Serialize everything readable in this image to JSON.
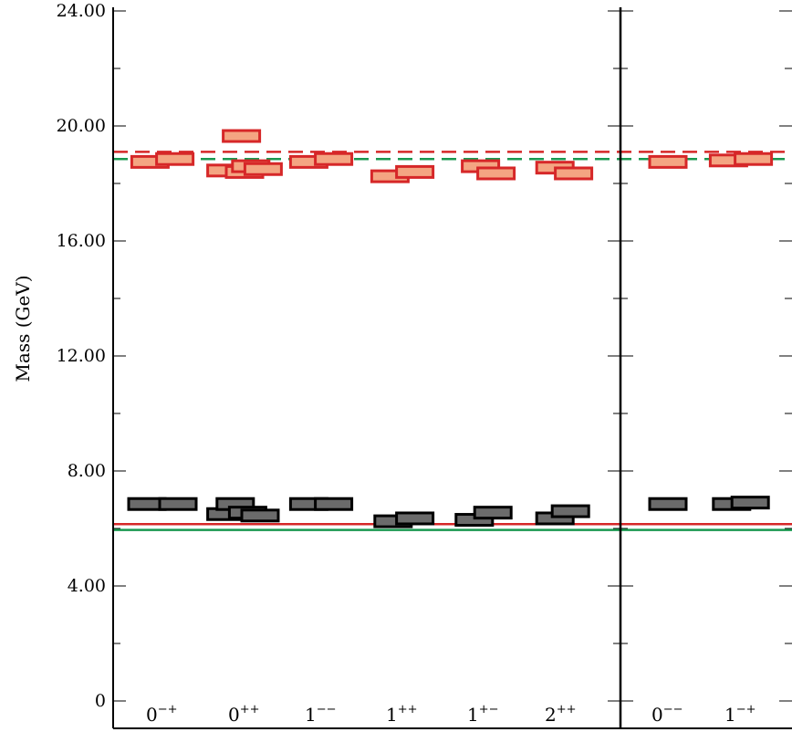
{
  "chart_data": {
    "type": "scatter",
    "ylabel": "Mass (GeV)",
    "ylim": [
      0,
      24
    ],
    "y_tick_values": [
      0,
      4,
      8,
      12,
      16,
      20,
      24
    ],
    "y_tick_labels": [
      "0",
      "4.00",
      "8.00",
      "12.00",
      "16.00",
      "20.00",
      "24.00"
    ],
    "panels": [
      {
        "categories": [
          {
            "base": "0",
            "sup": "−+"
          },
          {
            "base": "0",
            "sup": "++"
          },
          {
            "base": "1",
            "sup": "−−"
          },
          {
            "base": "1",
            "sup": "++"
          },
          {
            "base": "1",
            "sup": "+−"
          },
          {
            "base": "2",
            "sup": "++"
          }
        ]
      },
      {
        "categories": [
          {
            "base": "0",
            "sup": "−−"
          },
          {
            "base": "1",
            "sup": "−+"
          }
        ]
      }
    ],
    "reference_lines": [
      {
        "value": 6.15,
        "style": "solid",
        "color": "#d62728"
      },
      {
        "value": 5.95,
        "style": "solid",
        "color": "#1a9850"
      },
      {
        "value": 19.1,
        "style": "dashed",
        "color": "#d62728"
      },
      {
        "value": 18.85,
        "style": "dashed",
        "color": "#1a9850"
      }
    ],
    "series": [
      {
        "type": "lower",
        "fill": "#6b6b6b",
        "stroke": "#000000",
        "states": [
          {
            "panel": 0,
            "cat": 0,
            "offset": -0.5,
            "value": 6.85
          },
          {
            "panel": 0,
            "cat": 0,
            "offset": 0.5,
            "value": 6.85
          },
          {
            "panel": 0,
            "cat": 1,
            "offset": -0.6,
            "value": 6.5
          },
          {
            "panel": 0,
            "cat": 1,
            "offset": -0.3,
            "value": 6.85
          },
          {
            "panel": 0,
            "cat": 1,
            "offset": 0.1,
            "value": 6.55
          },
          {
            "panel": 0,
            "cat": 1,
            "offset": 0.5,
            "value": 6.45
          },
          {
            "panel": 0,
            "cat": 2,
            "offset": -0.4,
            "value": 6.85
          },
          {
            "panel": 0,
            "cat": 2,
            "offset": 0.4,
            "value": 6.85
          },
          {
            "panel": 0,
            "cat": 3,
            "offset": -0.3,
            "value": 6.25
          },
          {
            "panel": 0,
            "cat": 3,
            "offset": 0.4,
            "value": 6.35
          },
          {
            "panel": 0,
            "cat": 4,
            "offset": -0.3,
            "value": 6.3
          },
          {
            "panel": 0,
            "cat": 4,
            "offset": 0.3,
            "value": 6.55
          },
          {
            "panel": 0,
            "cat": 5,
            "offset": -0.2,
            "value": 6.35
          },
          {
            "panel": 0,
            "cat": 5,
            "offset": 0.3,
            "value": 6.6
          },
          {
            "panel": 1,
            "cat": 0,
            "offset": 0,
            "value": 6.85
          },
          {
            "panel": 1,
            "cat": 1,
            "offset": -0.3,
            "value": 6.85
          },
          {
            "panel": 1,
            "cat": 1,
            "offset": 0.3,
            "value": 6.9
          }
        ]
      },
      {
        "type": "upper",
        "fill": "#f4a582",
        "stroke": "#d62728",
        "states": [
          {
            "panel": 0,
            "cat": 0,
            "offset": -0.4,
            "value": 18.75
          },
          {
            "panel": 0,
            "cat": 0,
            "offset": 0.4,
            "value": 18.85
          },
          {
            "panel": 0,
            "cat": 1,
            "offset": -0.6,
            "value": 18.45
          },
          {
            "panel": 0,
            "cat": 1,
            "offset": -0.1,
            "value": 19.65
          },
          {
            "panel": 0,
            "cat": 1,
            "offset": 0.0,
            "value": 18.4
          },
          {
            "panel": 0,
            "cat": 1,
            "offset": 0.2,
            "value": 18.6
          },
          {
            "panel": 0,
            "cat": 1,
            "offset": 0.6,
            "value": 18.5
          },
          {
            "panel": 0,
            "cat": 2,
            "offset": -0.4,
            "value": 18.75
          },
          {
            "panel": 0,
            "cat": 2,
            "offset": 0.4,
            "value": 18.85
          },
          {
            "panel": 0,
            "cat": 3,
            "offset": -0.4,
            "value": 18.25
          },
          {
            "panel": 0,
            "cat": 3,
            "offset": 0.4,
            "value": 18.4
          },
          {
            "panel": 0,
            "cat": 4,
            "offset": -0.1,
            "value": 18.6
          },
          {
            "panel": 0,
            "cat": 4,
            "offset": 0.4,
            "value": 18.35
          },
          {
            "panel": 0,
            "cat": 5,
            "offset": -0.2,
            "value": 18.55
          },
          {
            "panel": 0,
            "cat": 5,
            "offset": 0.4,
            "value": 18.35
          },
          {
            "panel": 1,
            "cat": 0,
            "offset": 0,
            "value": 18.75
          },
          {
            "panel": 1,
            "cat": 1,
            "offset": -0.4,
            "value": 18.8
          },
          {
            "panel": 1,
            "cat": 1,
            "offset": 0.4,
            "value": 18.85
          }
        ]
      }
    ]
  }
}
